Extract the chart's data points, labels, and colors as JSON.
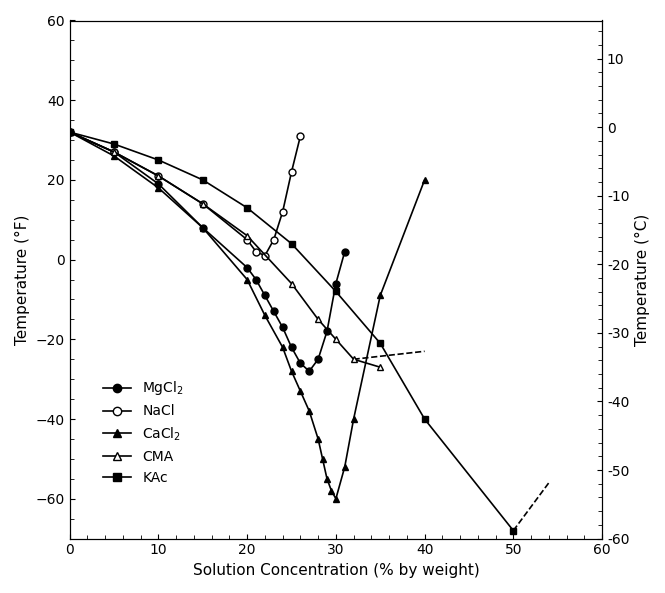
{
  "xlabel": "Solution Concentration (% by weight)",
  "ylabel_left": "Temperature (°F)",
  "ylabel_right": "Temperature (°C)",
  "xlim": [
    0,
    60
  ],
  "ylim_F": [
    -70,
    60
  ],
  "xticks": [
    0,
    10,
    20,
    30,
    40,
    50,
    60
  ],
  "yticks_F": [
    -60,
    -40,
    -20,
    0,
    20,
    40,
    60
  ],
  "yticks_C": [
    10,
    0,
    -10,
    -20,
    -30,
    -40,
    -50,
    -60
  ],
  "MgCl2": {
    "x": [
      0,
      5,
      10,
      15,
      20,
      21,
      22,
      23,
      24,
      25,
      26,
      27,
      28,
      29,
      30,
      31
    ],
    "y": [
      32,
      27,
      19,
      8,
      -2,
      -5,
      -9,
      -13,
      -17,
      -22,
      -26,
      -28,
      -25,
      -18,
      -6,
      2
    ]
  },
  "NaCl": {
    "x": [
      0,
      5,
      10,
      15,
      20,
      21,
      22,
      23,
      24,
      25,
      26
    ],
    "y": [
      32,
      27,
      21,
      14,
      5,
      2,
      1,
      5,
      12,
      22,
      31
    ]
  },
  "CaCl2": {
    "x": [
      0,
      5,
      10,
      15,
      20,
      22,
      24,
      25,
      26,
      27,
      28,
      28.5,
      29,
      29.5,
      30,
      31,
      32,
      35,
      40
    ],
    "y": [
      32,
      26,
      18,
      8,
      -5,
      -14,
      -22,
      -28,
      -33,
      -38,
      -45,
      -50,
      -55,
      -58,
      -60,
      -52,
      -40,
      -9,
      20
    ]
  },
  "CMA": {
    "x": [
      0,
      5,
      10,
      15,
      20,
      25,
      28,
      30,
      32,
      35
    ],
    "y": [
      32,
      27,
      21,
      14,
      6,
      -6,
      -15,
      -20,
      -25,
      -27
    ]
  },
  "KAc": {
    "x": [
      0,
      5,
      10,
      15,
      20,
      25,
      30,
      35,
      40,
      50
    ],
    "y": [
      32,
      29,
      25,
      20,
      13,
      4,
      -8,
      -21,
      -40,
      -68
    ]
  },
  "KAc_dashed": {
    "x": [
      50,
      54
    ],
    "y": [
      -68,
      -56
    ]
  },
  "CaCl2_dashed": {
    "x": [
      32,
      40
    ],
    "y": [
      -25,
      -23
    ]
  }
}
